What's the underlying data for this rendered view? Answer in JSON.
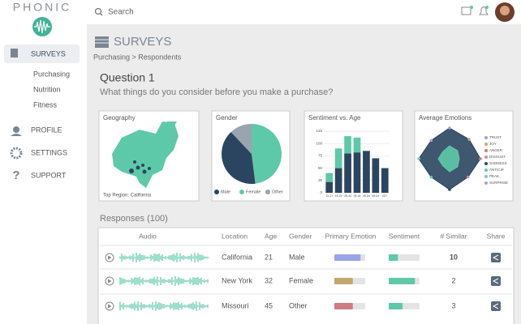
{
  "sidebar": {
    "brand": "PHONIC",
    "nav": [
      "SURVEYS",
      "PROFILE",
      "SETTINGS",
      "SUPPORT"
    ],
    "subnav": [
      "Purchasing",
      "Nutrition",
      "Fitness"
    ]
  },
  "topbar": {
    "search": "Search"
  },
  "header": {
    "title": "SURVEYS",
    "breadcrumb": "Purchasing > Respondents"
  },
  "question": {
    "title": "Question 1",
    "text": "What things do you consider before you make a purchase?"
  },
  "geography": {
    "title": "Geography",
    "caption": "Top Region: California"
  },
  "gender": {
    "title": "Gender",
    "type": "pie",
    "categories": [
      "Male",
      "Female",
      "Other"
    ],
    "values": [
      40,
      48,
      12
    ],
    "colors": [
      "#2b4560",
      "#5ec9a8",
      "#9aa3b0"
    ]
  },
  "sentiment": {
    "title": "Sentiment vs. Age",
    "type": "bar",
    "stacked": true,
    "categories": [
      "13-17",
      "18-24",
      "25-34",
      "35-44",
      "45-54",
      "55-64",
      "65+"
    ],
    "series": [
      {
        "color": "#2b4560",
        "values": [
          22,
          50,
          80,
          82,
          85,
          70,
          50
        ]
      },
      {
        "color": "#5ec9a8",
        "values": [
          18,
          40,
          35,
          30,
          0,
          0,
          0
        ]
      }
    ],
    "ylim": [
      0,
      125
    ],
    "yticks": [
      0,
      25,
      50,
      75,
      100,
      125
    ]
  },
  "emotions": {
    "title": "Average Emotions",
    "type": "radar",
    "categories": [
      "TRUST",
      "JOY",
      "ANGER",
      "DISGUST",
      "SADNESS",
      "ANTICIP.",
      "PEAK",
      "SURPRISE"
    ],
    "category_colors": [
      "#9aa3d8",
      "#c9a96a",
      "#d07a7a",
      "#c98f9f",
      "#2b4560",
      "#5ec9a8",
      "#7fc9b6",
      "#a8a0d8"
    ],
    "rlim": [
      0,
      1
    ],
    "series": [
      {
        "color": "#2b4560",
        "values": [
          0.95,
          0.85,
          0.95,
          0.8,
          0.95,
          0.8,
          0.95,
          0.8
        ]
      },
      {
        "color": "#5ec9a8",
        "values": [
          0.4,
          0.35,
          0.3,
          0.35,
          0.4,
          0.3,
          0.35,
          0.3
        ]
      }
    ]
  },
  "responses": {
    "title": "Responses (100)",
    "columns": [
      "Audio",
      "Location",
      "Age",
      "Gender",
      "Primary Emotion",
      "Sentiment",
      "# Similar",
      "Share"
    ],
    "rows": [
      {
        "location": "California",
        "age": 21,
        "gender": "Male",
        "emotion_color": "#9aa3e8",
        "emotion_score": 0.85,
        "sentiment_score": 0.3,
        "similar": 10
      },
      {
        "location": "New York",
        "age": 32,
        "gender": "Female",
        "emotion_color": "#c2a86e",
        "emotion_score": 0.6,
        "sentiment_score": 0.85,
        "similar": 2
      },
      {
        "location": "Missouri",
        "age": 45,
        "gender": "Other",
        "emotion_color": "#d07a82",
        "emotion_score": 0.6,
        "sentiment_score": 0.45,
        "similar": 3
      }
    ]
  }
}
